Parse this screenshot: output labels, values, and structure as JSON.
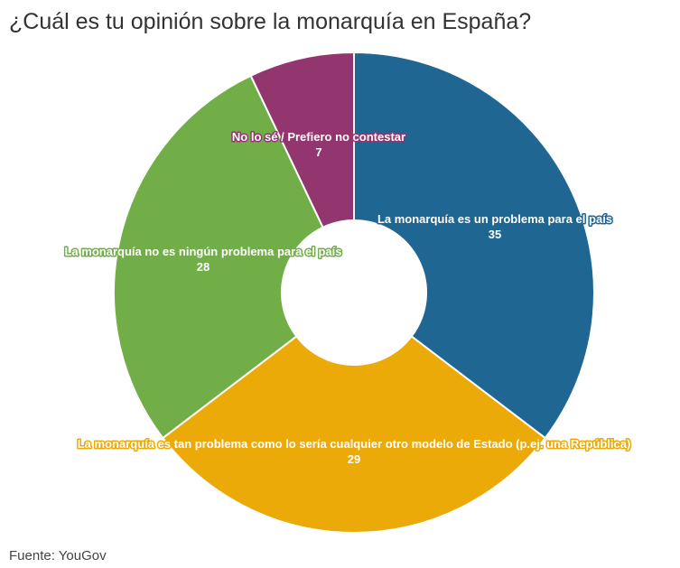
{
  "title": "¿Cuál es tu opinión sobre la monarquía en España?",
  "source": "Fuente: YouGov",
  "chart_data": {
    "type": "pie",
    "donut": true,
    "categories": [
      "La monarquía es un problema para el país",
      "La monarquía es tan problema como lo sería cualquier otro modelo de Estado (p.ej. una República)",
      "La monarquía no es ningún problema para el país",
      "No lo sé / Prefiero no contestar"
    ],
    "values": [
      35,
      29,
      28,
      7
    ],
    "colors": [
      "#1f6693",
      "#ebaa08",
      "#72ae48",
      "#933670"
    ],
    "title": "¿Cuál es tu opinión sobre la monarquía en España?",
    "legend": "none",
    "data_labels": true
  }
}
